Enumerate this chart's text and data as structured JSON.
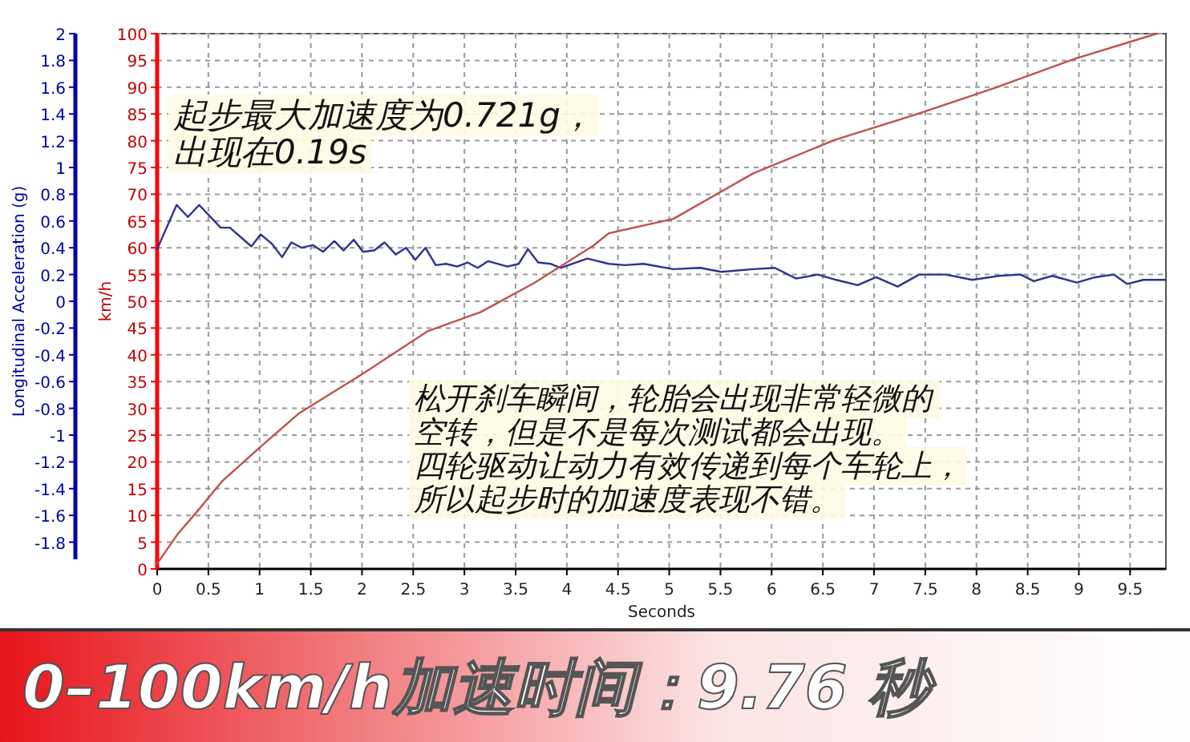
{
  "chart_data": {
    "type": "line",
    "title": "0–100km/h加速时间：9.76 秒",
    "xlabel": "Seconds",
    "ylabel": "Longitudinal Acceleration (g)",
    "y2label": "km/h",
    "xlim": [
      0,
      9.85
    ],
    "xticks": [
      0,
      0.5,
      1,
      1.5,
      2,
      2.5,
      3,
      3.5,
      4,
      4.5,
      5,
      5.5,
      6,
      6.5,
      7,
      7.5,
      8,
      8.5,
      9,
      9.5
    ],
    "ylim": [
      -2,
      2
    ],
    "yticks": [
      -1.8,
      -1.6,
      -1.4,
      -1.2,
      -1,
      -0.8,
      -0.6,
      -0.4,
      -0.2,
      0,
      0.2,
      0.4,
      0.6,
      0.8,
      1,
      1.2,
      1.4,
      1.6,
      1.8,
      2
    ],
    "y2lim": [
      0,
      100
    ],
    "y2ticks": [
      0,
      5,
      10,
      15,
      20,
      25,
      30,
      35,
      40,
      45,
      50,
      55,
      60,
      65,
      70,
      75,
      80,
      85,
      90,
      95,
      100
    ],
    "grid": true,
    "line_style": "solid",
    "marker": "none",
    "annotations": [
      "起步最大加速度为0.721g，",
      "出现在0.19s",
      "松开刹车瞬间，轮胎会出现非常轻微的",
      "空转，但是不是每次测试都会出现。",
      "四轮驱动让动力有效传递到每个车轮上，",
      "所以起步时的加速度表现不错。"
    ],
    "series": [
      {
        "color": "#2e3192",
        "x": [
          0,
          0.19,
          0.3,
          0.41,
          0.62,
          0.71,
          0.92,
          1.01,
          1.12,
          1.22,
          1.31,
          1.41,
          1.52,
          1.62,
          1.73,
          1.82,
          1.92,
          2.01,
          2.12,
          2.22,
          2.33,
          2.43,
          2.52,
          2.62,
          2.72,
          2.82,
          2.93,
          3.03,
          3.13,
          3.23,
          3.42,
          3.53,
          3.62,
          3.72,
          3.84,
          3.94,
          4.2,
          4.41,
          4.57,
          4.75,
          5.04,
          5.3,
          5.51,
          5.82,
          6.03,
          6.24,
          6.45,
          6.63,
          6.84,
          7.02,
          7.23,
          7.44,
          7.7,
          7.96,
          8.22,
          8.43,
          8.56,
          8.74,
          8.98,
          9.16,
          9.34,
          9.47,
          9.63,
          9.84
        ],
        "values": [
          0.39,
          0.72,
          0.63,
          0.72,
          0.55,
          0.55,
          0.41,
          0.5,
          0.43,
          0.33,
          0.44,
          0.4,
          0.42,
          0.37,
          0.45,
          0.38,
          0.46,
          0.37,
          0.38,
          0.44,
          0.35,
          0.4,
          0.31,
          0.4,
          0.27,
          0.28,
          0.26,
          0.29,
          0.25,
          0.3,
          0.26,
          0.28,
          0.39,
          0.29,
          0.28,
          0.25,
          0.32,
          0.28,
          0.27,
          0.28,
          0.24,
          0.25,
          0.22,
          0.24,
          0.25,
          0.17,
          0.2,
          0.16,
          0.12,
          0.18,
          0.11,
          0.2,
          0.2,
          0.16,
          0.19,
          0.2,
          0.15,
          0.19,
          0.14,
          0.18,
          0.2,
          0.13,
          0.16,
          0.16
        ]
      },
      {
        "color": "#c0504d",
        "axis": "y2",
        "x": [
          0,
          0.2,
          0.38,
          0.64,
          1.02,
          1.38,
          2.01,
          2.64,
          3.16,
          3.68,
          4.26,
          4.41,
          5.04,
          5.82,
          6.61,
          7.39,
          8.17,
          8.96,
          9.76
        ],
        "values": [
          1,
          6.5,
          10.5,
          16.5,
          23,
          29,
          36.5,
          44.4,
          48,
          53.4,
          60.4,
          62.7,
          65.4,
          73.9,
          80.1,
          84.8,
          89.8,
          95.3,
          100
        ]
      }
    ]
  }
}
